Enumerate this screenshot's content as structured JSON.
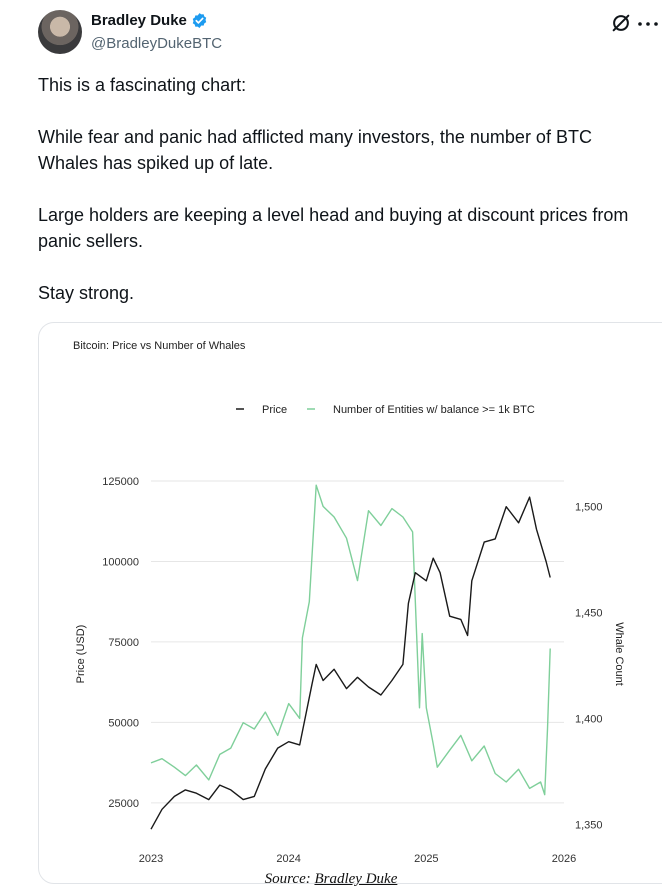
{
  "tweet": {
    "author_name": "Bradley Duke",
    "handle": "@BradleyDukeBTC",
    "paragraphs": [
      "This is a fascinating chart:",
      "While fear and panic had afflicted many investors, the number of BTC Whales has spiked up of late.",
      "Large holders are keeping a level head and buying at discount prices from panic sellers.",
      "Stay strong."
    ]
  },
  "caption": {
    "prefix": "Source:",
    "link": "Bradley Duke"
  },
  "colors": {
    "price": "#1a1a1a",
    "whales": "#7fcf9a",
    "grid": "#e6e6e6",
    "verified": "#1d9bf0"
  },
  "chart_data": {
    "type": "line",
    "title": "Bitcoin: Price vs Number of Whales",
    "legend": [
      "Price",
      "Number of Entities w/ balance >= 1k BTC"
    ],
    "legend_position": "top-center",
    "grid": true,
    "x_ticks": [
      "2023",
      "2024",
      "2025",
      "2026"
    ],
    "x_range": [
      2023,
      2026
    ],
    "y_left": {
      "label": "Price (USD)",
      "range": [
        15000,
        125000
      ],
      "ticks": [
        "25000",
        "50000",
        "75000",
        "100000",
        "125000"
      ]
    },
    "y_right": {
      "label": "Whale Count",
      "range": [
        1345,
        1512
      ],
      "ticks": [
        "1,350",
        "1,400",
        "1,450",
        "1,500"
      ]
    },
    "series": [
      {
        "name": "Price",
        "axis": "left",
        "x": [
          2023.0,
          2023.08,
          2023.17,
          2023.25,
          2023.33,
          2023.42,
          2023.5,
          2023.58,
          2023.67,
          2023.75,
          2023.83,
          2023.92,
          2024.0,
          2024.08,
          2024.17,
          2024.2,
          2024.25,
          2024.33,
          2024.42,
          2024.5,
          2024.58,
          2024.67,
          2024.75,
          2024.83,
          2024.87,
          2024.92,
          2025.0,
          2025.05,
          2025.1,
          2025.17,
          2025.25,
          2025.3,
          2025.33,
          2025.42,
          2025.5,
          2025.58,
          2025.67,
          2025.75,
          2025.8,
          2025.87,
          2025.9
        ],
        "y": [
          16800,
          23000,
          27000,
          29000,
          28000,
          26000,
          30500,
          29000,
          26000,
          27000,
          35500,
          42000,
          44000,
          43000,
          62000,
          68000,
          63000,
          66500,
          60500,
          64000,
          61000,
          58500,
          63000,
          68000,
          87000,
          96500,
          94000,
          101000,
          96500,
          83000,
          82000,
          77000,
          94000,
          106000,
          107000,
          117000,
          112000,
          120000,
          110000,
          100000,
          95000
        ]
      },
      {
        "name": "Number of Entities w/ balance >= 1k BTC",
        "axis": "right",
        "x": [
          2023.0,
          2023.08,
          2023.17,
          2023.25,
          2023.33,
          2023.42,
          2023.5,
          2023.58,
          2023.67,
          2023.75,
          2023.83,
          2023.92,
          2024.0,
          2024.08,
          2024.1,
          2024.15,
          2024.2,
          2024.25,
          2024.33,
          2024.42,
          2024.5,
          2024.58,
          2024.67,
          2024.75,
          2024.83,
          2024.9,
          2024.95,
          2024.97,
          2025.0,
          2025.05,
          2025.08,
          2025.17,
          2025.25,
          2025.33,
          2025.42,
          2025.5,
          2025.58,
          2025.67,
          2025.75,
          2025.83,
          2025.86,
          2025.88,
          2025.9
        ],
        "y": [
          1379,
          1381,
          1377,
          1373,
          1378,
          1371,
          1383,
          1386,
          1398,
          1395,
          1403,
          1392,
          1407,
          1400,
          1438,
          1455,
          1510,
          1500,
          1495,
          1485,
          1465,
          1498,
          1491,
          1499,
          1495,
          1488,
          1405,
          1440,
          1405,
          1388,
          1377,
          1385,
          1392,
          1380,
          1387,
          1374,
          1370,
          1376,
          1367,
          1370,
          1364,
          1395,
          1433
        ]
      }
    ]
  }
}
